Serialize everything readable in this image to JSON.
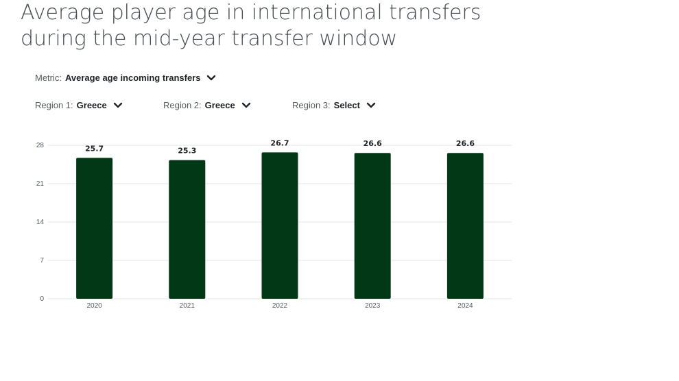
{
  "title_lines": [
    "Average player age in international transfers",
    "during the mid-year transfer window"
  ],
  "controls": {
    "metric": {
      "label": "Metric:",
      "value": "Average age incoming transfers"
    },
    "region1": {
      "label": "Region 1:",
      "value": "Greece"
    },
    "region2": {
      "label": "Region 2:",
      "value": "Greece"
    },
    "region3": {
      "label": "Region 3:",
      "value": "Select"
    }
  },
  "icons": {
    "dropdown": "chevron-down-icon"
  },
  "colors": {
    "bar": "#033816",
    "grid": "#e6e6e6",
    "text": "#1f2328"
  },
  "chart_data": {
    "type": "bar",
    "categories": [
      "2020",
      "2021",
      "2022",
      "2023",
      "2024"
    ],
    "values": [
      25.7,
      25.3,
      26.7,
      26.6,
      26.6
    ],
    "data_labels": [
      "25.7",
      "25.3",
      "26.7",
      "26.6",
      "26.6"
    ],
    "title": "Average player age in international transfers during the mid-year transfer window",
    "xlabel": "",
    "ylabel": "",
    "ylim": [
      0,
      28
    ],
    "yticks": [
      0,
      7,
      14,
      21,
      28
    ],
    "grid": true,
    "legend": "none"
  }
}
